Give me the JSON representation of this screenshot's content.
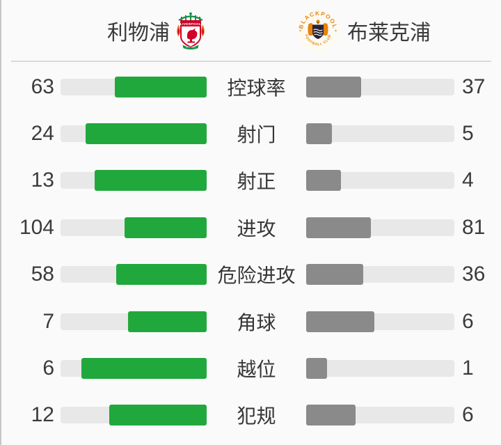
{
  "header": {
    "home": {
      "name": "利物浦",
      "crest_banner_text": "LIVERPOOL",
      "crest_scroll_text": "EST 1892"
    },
    "away": {
      "name": "布莱克浦",
      "crest_top_text": "BLACKPOOL",
      "crest_bottom_text": "FOOTBALL CLUB"
    }
  },
  "stats": [
    {
      "label": "控球率",
      "home": 63,
      "away": 37
    },
    {
      "label": "射门",
      "home": 24,
      "away": 5
    },
    {
      "label": "射正",
      "home": 13,
      "away": 4
    },
    {
      "label": "进攻",
      "home": 104,
      "away": 81
    },
    {
      "label": "危险进攻",
      "home": 58,
      "away": 36
    },
    {
      "label": "角球",
      "home": 7,
      "away": 6
    },
    {
      "label": "越位",
      "home": 6,
      "away": 1
    },
    {
      "label": "犯规",
      "home": 12,
      "away": 6
    }
  ],
  "colors": {
    "home_bar": "#21a83d",
    "away_bar": "#8a8a8a",
    "bar_track": "#e8e8e8",
    "background": "#fafafa",
    "text": "#3b3b3b",
    "crest_orange": "#e8820c",
    "crest_red": "#d00027",
    "crest_green": "#12914a"
  },
  "chart_data": {
    "type": "bar",
    "categories": [
      "控球率",
      "射门",
      "射正",
      "进攻",
      "危险进攻",
      "角球",
      "越位",
      "犯规"
    ],
    "series": [
      {
        "name": "利物浦",
        "values": [
          63,
          24,
          13,
          104,
          58,
          7,
          6,
          12
        ]
      },
      {
        "name": "布莱克浦",
        "values": [
          37,
          5,
          4,
          81,
          36,
          6,
          1,
          6
        ]
      }
    ],
    "layout": "horizontal mirrored comparison bars; each bar filled proportionally to value / (home+away)",
    "legend_position": "top"
  }
}
